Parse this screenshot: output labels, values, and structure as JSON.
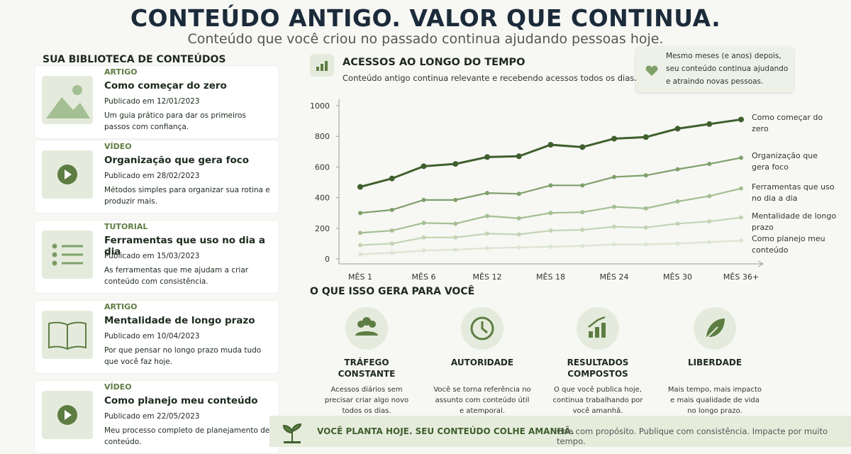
{
  "header": {
    "title": "CONTEÚDO ANTIGO. VALOR QUE CONTINUA.",
    "subtitle": "Conteúdo que você criou no passado continua ajudando pessoas hoje."
  },
  "library": {
    "title": "SUA BIBLIOTECA DE CONTEÚDOS",
    "items": [
      {
        "type": "ARTIGO",
        "title": "Como começar do zero",
        "date": "Publicado em 12/01/2023",
        "description": "Um guia prático para dar os primeiros passos com confiança."
      },
      {
        "type": "VÍDEO",
        "title": "Organização que gera foco",
        "date": "Publicado em 28/02/2023",
        "description": "Métodos simples para organizar sua rotina e produzir mais."
      },
      {
        "type": "TUTORIAL",
        "title": "Ferramentas que uso no dia a dia",
        "date": "Publicado em 15/03/2023",
        "description": "As ferramentas que me ajudam a criar conteúdo com consistência."
      },
      {
        "type": "ARTIGO",
        "title": "Mentalidade de longo prazo",
        "date": "Publicado em 10/04/2023",
        "description": "Por que pensar no longo prazo muda tudo que você faz hoje."
      },
      {
        "type": "VÍDEO",
        "title": "Como planejo meu conteúdo",
        "date": "Publicado em 22/05/2023",
        "description": "Meu processo completo de planejamento de conteúdo."
      }
    ]
  },
  "chart_data": {
    "type": "line",
    "title": "ACESSOS AO LONGO DO TEMPO",
    "subtitle": "Conteúdo antigo continua relevante e recebendo acessos todos os dias.",
    "categories": [
      "MÊS 1",
      null,
      "MÊS 6",
      null,
      "MÊS 12",
      null,
      "MÊS 18",
      null,
      "MÊS 24",
      null,
      "MÊS 30",
      null,
      "MÊS 36+"
    ],
    "series": [
      {
        "name": "Como começar do zero",
        "color": "#3f5f2e",
        "values": [
          470,
          525,
          605,
          620,
          665,
          670,
          745,
          730,
          785,
          795,
          850,
          880,
          910
        ]
      },
      {
        "name": "Organização que gera foco",
        "color": "#7fa06a",
        "values": [
          300,
          320,
          385,
          385,
          430,
          425,
          480,
          480,
          535,
          545,
          585,
          620,
          660
        ]
      },
      {
        "name": "Ferramentas que uso no dia a dia",
        "color": "#a4bf93",
        "values": [
          170,
          185,
          235,
          230,
          280,
          265,
          300,
          305,
          340,
          330,
          375,
          410,
          460
        ]
      },
      {
        "name": "Mentalidade de longo prazo",
        "color": "#c3d4b5",
        "values": [
          90,
          100,
          140,
          140,
          165,
          160,
          185,
          190,
          210,
          205,
          230,
          245,
          270
        ]
      },
      {
        "name": "Como planejo meu conteúdo",
        "color": "#dbe5d2",
        "values": [
          30,
          40,
          55,
          60,
          70,
          75,
          80,
          85,
          95,
          95,
          100,
          110,
          120
        ]
      }
    ],
    "ylim": [
      0,
      1000
    ],
    "yticks": [
      0,
      200,
      400,
      600,
      800,
      1000
    ],
    "grid": false
  },
  "callout": "Mesmo meses (e anos) depois, seu conteúdo continua ajudando e atraindo novas pessoas.",
  "benefits": {
    "title": "O QUE ISSO GERA PARA VOCÊ",
    "items": [
      {
        "title": "TRÁFEGO CONSTANTE",
        "text": "Acessos diários sem precisar criar algo novo todos os dias."
      },
      {
        "title": "AUTORIDADE",
        "text": "Você se torna referência no assunto com conteúdo útil e atemporal."
      },
      {
        "title": "RESULTADOS COMPOSTOS",
        "text": "O que você publica hoje, continua trabalhando por você amanhã."
      },
      {
        "title": "LIBERDADE",
        "text": "Mais tempo, mais impacto e mais qualidade de vida no longo prazo."
      }
    ]
  },
  "footer": {
    "headline": "VOCÊ PLANTA HOJE. SEU CONTEÚDO COLHE AMANHÃ.",
    "tagline": "Crie com propósito. Publique com consistência. Impacte por muito tempo."
  }
}
